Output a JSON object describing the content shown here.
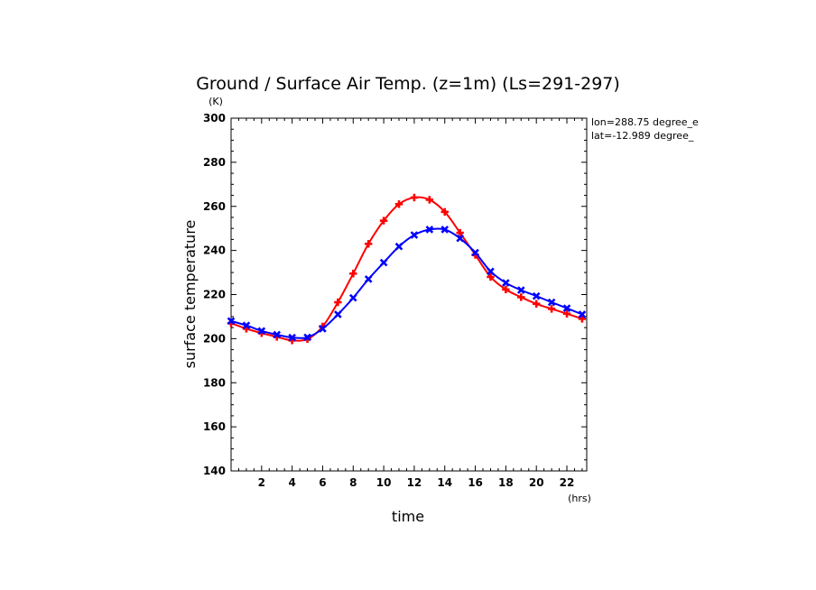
{
  "chart_data": {
    "type": "line",
    "title": "Ground / Surface Air Temp. (z=1m) (Ls=291-297)",
    "xlabel": "time",
    "ylabel": "surface temperature",
    "x_unit": "(hrs)",
    "y_unit": "(K)",
    "annotations": [
      "lon=288.75 degree_e",
      "lat=-12.989 degree_"
    ],
    "xlim": [
      0,
      23.3
    ],
    "ylim": [
      140,
      300
    ],
    "x_ticks": [
      2,
      4,
      6,
      8,
      10,
      12,
      14,
      16,
      18,
      20,
      22
    ],
    "y_ticks": [
      140,
      160,
      180,
      200,
      220,
      240,
      260,
      280,
      300
    ],
    "grid": false,
    "series": [
      {
        "color": "#ff0000",
        "marker": "plus",
        "x": [
          0,
          1,
          2,
          3,
          4,
          5,
          6,
          7,
          8,
          9,
          10,
          11,
          12,
          13,
          14,
          15,
          16,
          17,
          18,
          19,
          20,
          21,
          22,
          23
        ],
        "values": [
          207,
          204.5,
          202.5,
          200.8,
          199.2,
          199.8,
          205.5,
          216.5,
          229.5,
          243,
          253.5,
          261,
          264,
          263,
          257.5,
          248,
          238,
          228,
          222.3,
          218.8,
          215.8,
          213.5,
          211.3,
          209
        ]
      },
      {
        "color": "#0000ff",
        "marker": "x",
        "x": [
          0,
          1,
          2,
          3,
          4,
          5,
          6,
          7,
          8,
          9,
          10,
          11,
          12,
          13,
          14,
          15,
          16,
          17,
          18,
          19,
          20,
          21,
          22,
          23
        ],
        "values": [
          208,
          206,
          203.5,
          201.8,
          200.5,
          200.6,
          204.5,
          211,
          218.5,
          227,
          234.5,
          241.8,
          247,
          249.5,
          249.5,
          245.5,
          239,
          230.5,
          225.3,
          222,
          219.3,
          216.5,
          213.8,
          211
        ]
      }
    ]
  }
}
